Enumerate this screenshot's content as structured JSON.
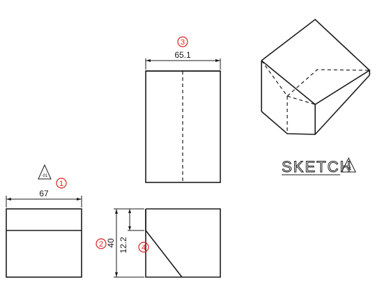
{
  "dimensions": {
    "top_width": "65.1",
    "front_width": "67",
    "height": "40",
    "step_height": "12.2"
  },
  "callouts": {
    "c1": "1",
    "c2": "2",
    "c3": "3",
    "c4": "4"
  },
  "sketch": {
    "label": "SKETCH",
    "revision_mark": "-01"
  },
  "colors": {
    "line": "#1a1a1a",
    "callout": "#e02020"
  }
}
